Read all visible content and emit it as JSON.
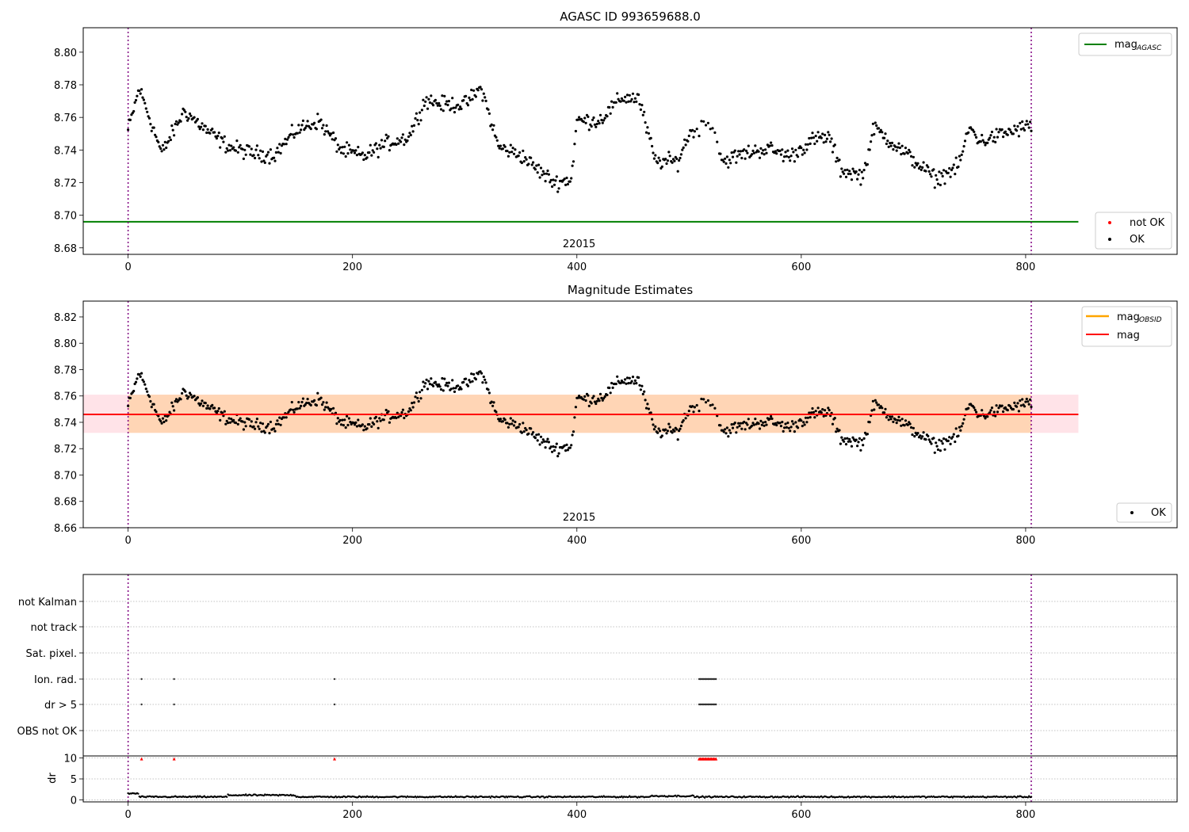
{
  "chart_data": [
    {
      "type": "scatter",
      "title": "AGASC ID 993659688.0",
      "xlim": [
        -40,
        935
      ],
      "ylim": [
        8.676,
        8.815
      ],
      "xticks": [
        "0",
        "200",
        "400",
        "600",
        "800"
      ],
      "yticks": [
        "8.68",
        "8.70",
        "8.72",
        "8.74",
        "8.76",
        "8.78",
        "8.80"
      ],
      "obsid_label": "22015",
      "obsid_bounds": [
        0,
        805
      ],
      "mag_agasc": 8.696,
      "mag_agasc_range": [
        -40,
        847
      ],
      "legend_upper": {
        "label": "mag",
        "sub": "AGASC",
        "color": "#008000"
      },
      "legend_lower": [
        {
          "label": "not OK",
          "color": "#ff0000"
        },
        {
          "label": "OK",
          "color": "#000000"
        }
      ],
      "series": [
        {
          "name": "OK",
          "color": "#000000",
          "x_range": [
            0,
            805
          ],
          "segments": [
            [
              [
                0,
                8.752
              ],
              [
                10,
                8.778
              ],
              [
                20,
                8.758
              ],
              [
                30,
                8.738
              ],
              [
                50,
                8.764
              ],
              [
                70,
                8.752
              ],
              [
                90,
                8.742
              ],
              [
                110,
                8.738
              ],
              [
                130,
                8.737
              ],
              [
                150,
                8.752
              ],
              [
                170,
                8.758
              ],
              [
                190,
                8.74
              ],
              [
                210,
                8.736
              ],
              [
                230,
                8.744
              ],
              [
                250,
                8.748
              ],
              [
                265,
                8.771
              ],
              [
                280,
                8.768
              ],
              [
                300,
                8.768
              ],
              [
                315,
                8.778
              ],
              [
                330,
                8.742
              ],
              [
                350,
                8.737
              ],
              [
                365,
                8.728
              ],
              [
                380,
                8.72
              ],
              [
                395,
                8.722
              ],
              [
                400,
                8.758
              ],
              [
                420,
                8.758
              ],
              [
                440,
                8.772
              ],
              [
                455,
                8.772
              ],
              [
                470,
                8.733
              ],
              [
                490,
                8.733
              ],
              [
                500,
                8.75
              ],
              [
                520,
                8.758
              ],
              [
                530,
                8.733
              ],
              [
                550,
                8.738
              ],
              [
                570,
                8.741
              ],
              [
                590,
                8.736
              ],
              [
                610,
                8.746
              ],
              [
                625,
                8.748
              ],
              [
                635,
                8.728
              ],
              [
                655,
                8.724
              ],
              [
                665,
                8.754
              ],
              [
                680,
                8.745
              ],
              [
                700,
                8.734
              ],
              [
                720,
                8.722
              ],
              [
                740,
                8.73
              ],
              [
                750,
                8.754
              ],
              [
                760,
                8.745
              ],
              [
                780,
                8.75
              ],
              [
                805,
                8.755
              ]
            ]
          ],
          "spread": 0.007
        }
      ]
    },
    {
      "type": "scatter",
      "title": "Magnitude Estimates",
      "xlim": [
        -40,
        935
      ],
      "ylim": [
        8.66,
        8.832
      ],
      "xticks": [
        "0",
        "200",
        "400",
        "600",
        "800"
      ],
      "yticks": [
        "8.66",
        "8.68",
        "8.70",
        "8.72",
        "8.74",
        "8.76",
        "8.78",
        "8.80",
        "8.82"
      ],
      "obsid_label": "22015",
      "mag": 8.746,
      "mag_band": [
        8.732,
        8.761
      ],
      "mag_range": [
        -40,
        847
      ],
      "legend_upper": [
        {
          "label": "mag",
          "sub": "OBSID",
          "color": "#ffa500"
        },
        {
          "label": "mag",
          "sub": "",
          "color": "#ff0000"
        }
      ],
      "legend_lower": [
        {
          "label": "OK",
          "color": "#000000"
        }
      ]
    },
    {
      "type": "scatter",
      "title": "",
      "xlim": [
        -40,
        935
      ],
      "xticks": [
        "0",
        "200",
        "400",
        "600",
        "800"
      ],
      "flag_rows": [
        "not Kalman",
        "not track",
        "Sat. pixel.",
        "Ion. rad.",
        "dr > 5",
        "OBS not OK"
      ],
      "flag_points": {
        "Ion. rad.": [
          12,
          41,
          184,
          509,
          510,
          511,
          512,
          513,
          514,
          515,
          516,
          517,
          518,
          519,
          520,
          521,
          522,
          523,
          524
        ],
        "dr > 5": [
          12,
          41,
          184,
          509,
          510,
          511,
          512,
          513,
          514,
          515,
          516,
          517,
          518,
          519,
          520,
          521,
          522,
          523,
          524
        ]
      },
      "dr_ylabel": "dr",
      "dr_yticks": [
        "0",
        "5",
        "10"
      ],
      "dr_ylim": [
        -0.5,
        10.5
      ],
      "dr_clipped_x": [
        12,
        41,
        184,
        509,
        510,
        511,
        512,
        513,
        514,
        515,
        516,
        517,
        518,
        519,
        520,
        521,
        522,
        523,
        524
      ],
      "dr_typical": 0.7
    }
  ]
}
